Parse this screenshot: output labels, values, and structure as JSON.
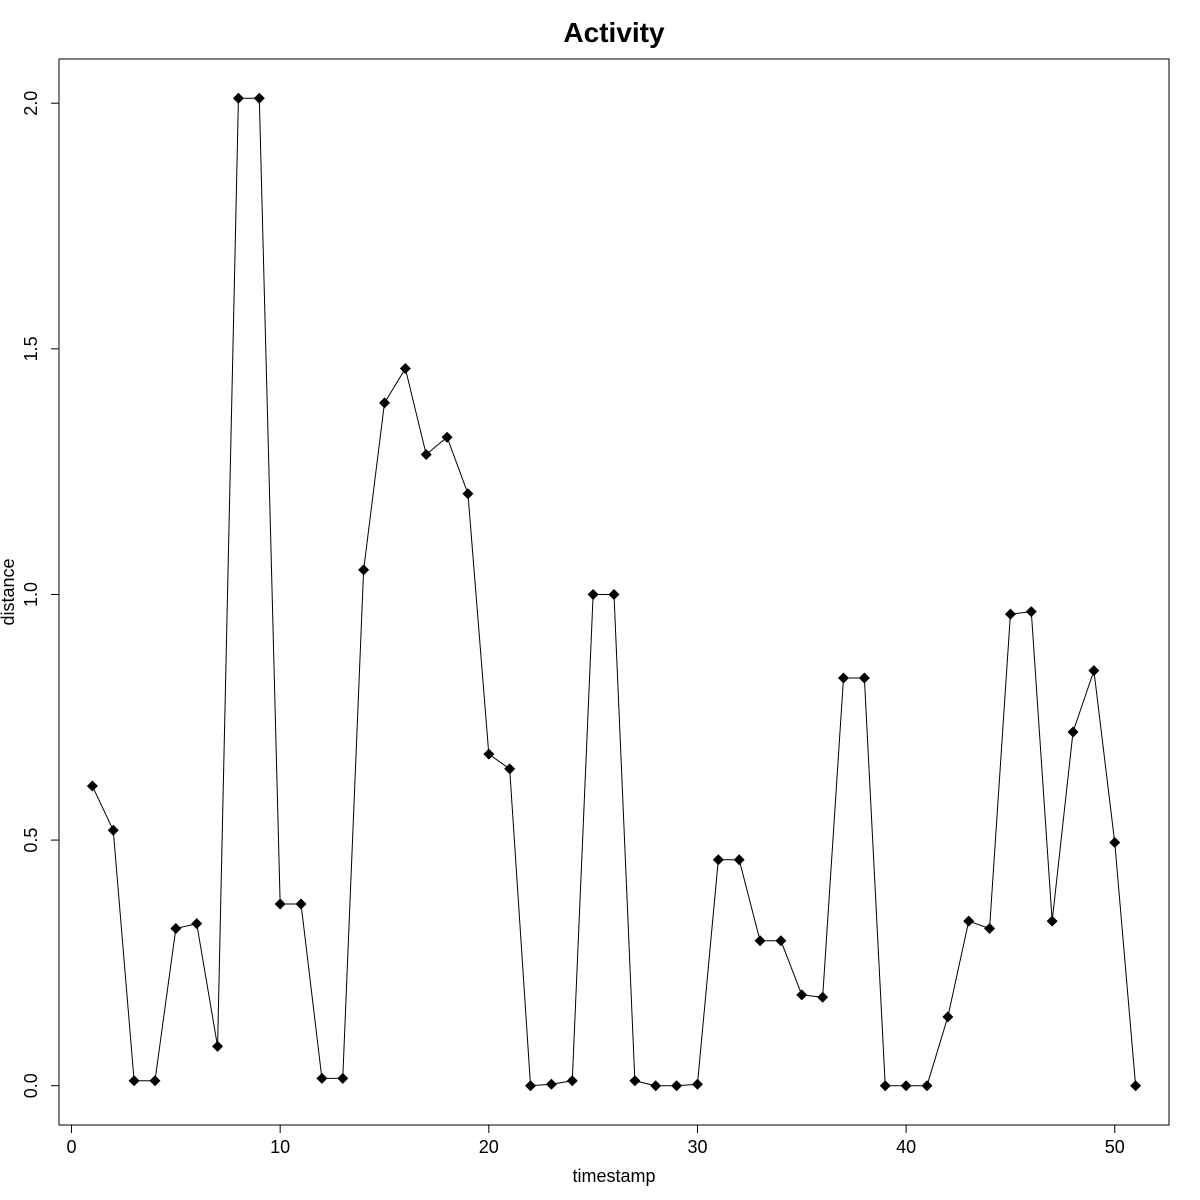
{
  "chart_data": {
    "type": "line",
    "title": "Activity",
    "xlabel": "timestamp",
    "ylabel": "distance",
    "xlim": [
      -0.6,
      52.6
    ],
    "ylim": [
      -0.08,
      2.09
    ],
    "x_ticks": [
      0,
      10,
      20,
      30,
      40,
      50
    ],
    "x_tick_labels": [
      "0",
      "10",
      "20",
      "30",
      "40",
      "50"
    ],
    "y_ticks": [
      0.0,
      0.5,
      1.0,
      1.5,
      2.0
    ],
    "y_tick_labels": [
      "0.0",
      "0.5",
      "1.0",
      "1.5",
      "2.0"
    ],
    "grid": false,
    "marker": "diamond",
    "color": "#000000",
    "x": [
      1,
      2,
      3,
      4,
      5,
      6,
      7,
      8,
      9,
      10,
      11,
      12,
      13,
      14,
      15,
      16,
      17,
      18,
      19,
      20,
      21,
      22,
      23,
      24,
      25,
      26,
      27,
      28,
      29,
      30,
      31,
      32,
      33,
      34,
      35,
      36,
      37,
      38,
      39,
      40,
      41,
      42,
      43,
      44,
      45,
      46,
      47,
      48,
      49,
      50,
      51
    ],
    "y": [
      0.61,
      0.52,
      0.01,
      0.01,
      0.32,
      0.33,
      0.08,
      2.01,
      2.01,
      0.37,
      0.37,
      0.015,
      0.015,
      1.05,
      1.39,
      1.46,
      1.285,
      1.32,
      1.205,
      0.675,
      0.645,
      0.0,
      0.003,
      0.01,
      1.0,
      1.0,
      0.01,
      0.0,
      0.0,
      0.003,
      0.46,
      0.46,
      0.295,
      0.295,
      0.185,
      0.18,
      0.83,
      0.83,
      0.0,
      0.0,
      0.0,
      0.14,
      0.335,
      0.32,
      0.96,
      0.965,
      0.335,
      0.72,
      0.845,
      0.495,
      0.0
    ]
  }
}
